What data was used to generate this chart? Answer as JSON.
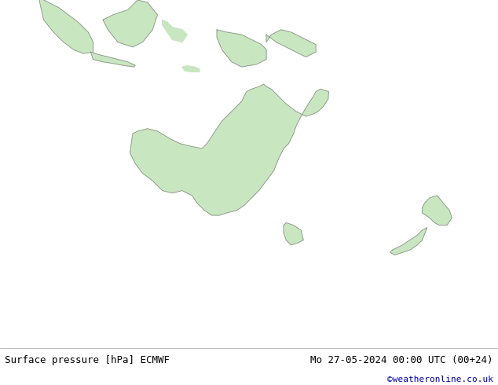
{
  "title_left": "Surface pressure [hPa] ECMWF",
  "title_right": "Mo 27-05-2024 00:00 UTC (00+24)",
  "copyright": "©weatheronline.co.uk",
  "bg_color": "#d0d8e8",
  "land_color": "#c8e6c0",
  "ocean_color": "#c8d4e8",
  "fig_width": 6.34,
  "fig_height": 4.9,
  "dpi": 100,
  "footer_bg": "#e8e8e8",
  "isobar_blue_color": "#0000cc",
  "isobar_red_color": "#cc0000",
  "isobar_black_color": "#000000",
  "label_fontsize": 8,
  "footer_fontsize": 9,
  "copyright_fontsize": 8,
  "copyright_color": "#0000aa"
}
